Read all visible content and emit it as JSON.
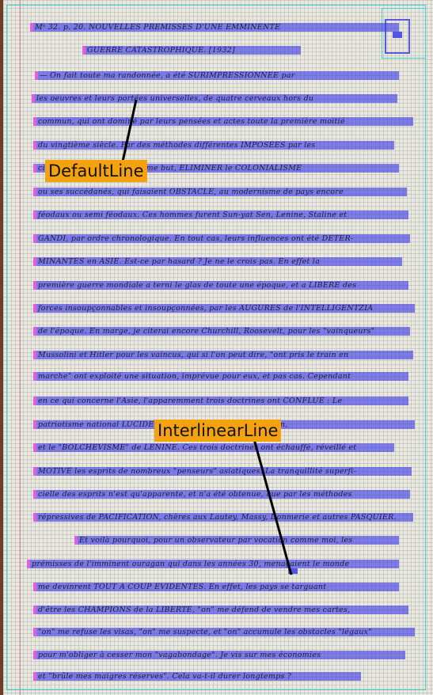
{
  "lines": [
    {
      "text": "Mˢ 32. p. 20. NOUVELLES PREMISSES D'UNE EMMINENTE"
    },
    {
      "text": "GUERRE CATASTROPHIQUE. [1932]"
    },
    {
      "text": "— On fait toute ma randonnée, a été SURIMPRESSIONNÉE par"
    },
    {
      "text": "les oeuvres et leurs portées universelles, de quatre cerveaux hors du"
    },
    {
      "text": "commun, qui ont dominé par leurs pensées et actes toute la première moitié"
    },
    {
      "text": "du vingtième siècle. Par des méthodes différentes IMPOSÉES par les"
    },
    {
      "text": "circonstances ... visé le même but, ELIMINER le COLONIALISME"
    },
    {
      "text": "ou ses succédanés, qui faisaient OBSTACLE, au modernisme de pays encore"
    },
    {
      "text": "féodaux ou semi féodaux. Ces hommes furent Sun-yat Sen, Lenine, Staline et"
    },
    {
      "text": "GANDI, par ordre chronologique. En tout cas, leurs influences ont été DETER-"
    },
    {
      "text": "MINANTES en ASIE. Est-ce par hasard ? Je ne le crois pas. En effet la"
    },
    {
      "text": "première guerre mondiale a terni le glas de toute une époque, et a LIBERÉ des"
    },
    {
      "text": "forces insoupçonnables et insoupçonnées, par les AUGURES de l'INTELLIGENTZIA"
    },
    {
      "text": "de l'époque. En marge, je citerai encore Churchill, Roosevelt, pour les \"vainqueurs\""
    },
    {
      "text": "Mussolini et Hitler pour les vaincus, qui si l'on peut dire, \"ont pris le train en"
    },
    {
      "text": "marche\" ont exploité une situation, imprévue pour eux, et pas cas. Cependant"
    },
    {
      "text": "en ce qui concerne l'Asie, l'apparemment trois doctrines ont CONFLUÉ : Le"
    },
    {
      "text": "patriotisme national LUCIDE ... émancipateur de Sun-yat-Sen,"
    },
    {
      "text": "et le \"BOLCHEVISME\" de LENINE. Ces trois doctrines ont échauffé, réveillé et"
    },
    {
      "text": "MOTIVÉ les esprits de nombreux \"penseurs\" asiatiques. La tranquillité superfi-"
    },
    {
      "text": "cielle des esprits n'est qu'apparente, et n'a été obtenue, que par les méthodes"
    },
    {
      "text": "répressives de PACIFICATION, chères aux Lautey, Massy, Donmerie et autres PASQUIER."
    },
    {
      "text": "Et voilà pourquoi, pour un observateur par vocation comme moi, les"
    },
    {
      "text": "prémisses de l'imminent ouragan qui dans les années 30, menaçaient le monde"
    },
    {
      "text": "me devinrent TOUT A COUP EVIDENTES. En effet, les pays se targuant"
    },
    {
      "text": "d'être les CHAMPIONS de la LIBERTÉ, \"on\" me défend de vendre mes cartes,"
    },
    {
      "text": "\"on\" me refuse les visas, \"on\" me suspecte, et \"on\" accumule les obstacles \"légaux\""
    },
    {
      "text": "pour m'obliger à cesser mon \"vagabondage\". Je vis sur mes économies"
    },
    {
      "text": "et \"brûle mes maigres réserves\". Cela va-t-il durer longtemps ?"
    }
  ],
  "labels": {
    "default": "DefaultLine",
    "interlinear": "InterlinearLine"
  },
  "colors": {
    "line_highlight": "#3c3ce6",
    "baseline_marker": "#e060e0",
    "region_border": "#3fd2d2",
    "label_background": "#f5a20f"
  }
}
